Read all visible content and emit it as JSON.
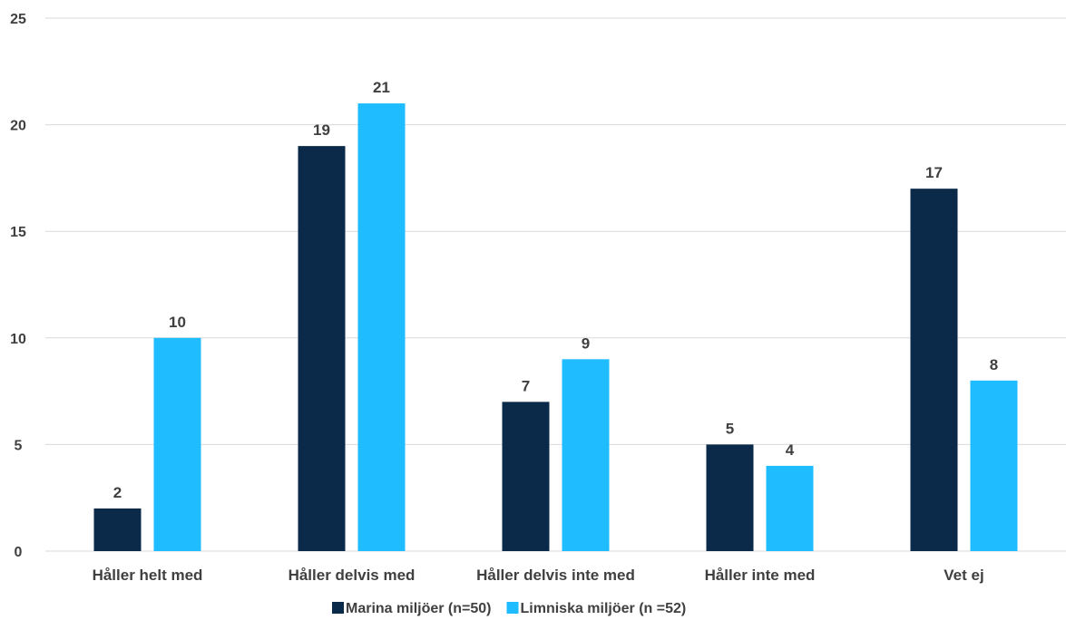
{
  "chart_data": {
    "type": "bar",
    "categories": [
      "Håller helt med",
      "Håller delvis med",
      "Håller delvis inte med",
      "Håller inte med",
      "Vet ej"
    ],
    "series": [
      {
        "name": "Marina miljöer (n=50)",
        "values": [
          2,
          19,
          7,
          5,
          17
        ],
        "color": "#0b2a4a"
      },
      {
        "name": "Limniska miljöer (n =52)",
        "values": [
          10,
          21,
          9,
          4,
          8
        ],
        "color": "#1fbcff"
      }
    ],
    "ylim": [
      0,
      25
    ],
    "yticks": [
      0,
      5,
      10,
      15,
      20,
      25
    ],
    "grid": true,
    "legend": "bottom",
    "data_labels": true
  }
}
